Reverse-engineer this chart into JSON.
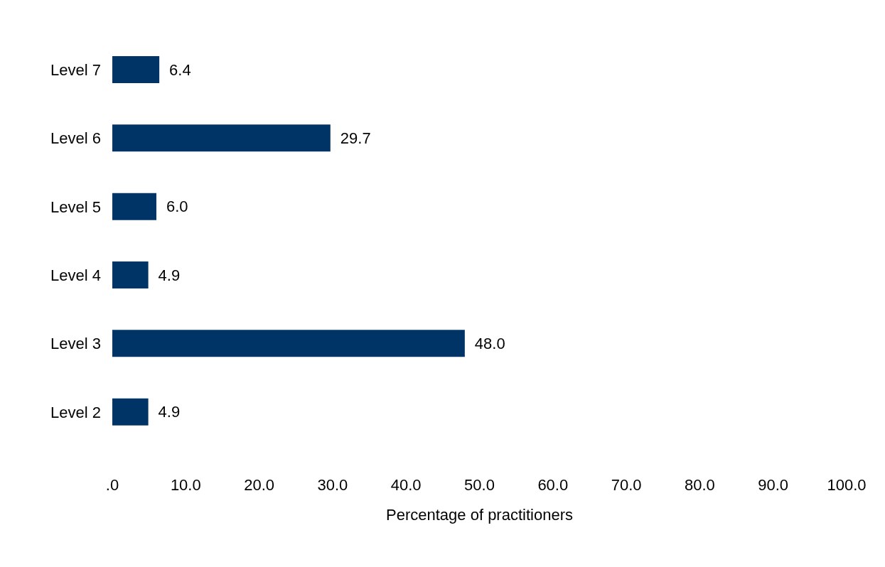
{
  "chart_data": {
    "type": "bar",
    "orientation": "horizontal",
    "xlabel": "Percentage of practitioners",
    "categories": [
      "Level 7",
      "Level 6",
      "Level 5",
      "Level 4",
      "Level 3",
      "Level 2"
    ],
    "values": [
      6.4,
      29.7,
      6.0,
      4.9,
      48.0,
      4.9
    ],
    "value_labels": [
      "6.4",
      "29.7",
      "6.0",
      "4.9",
      "48.0",
      "4.9"
    ],
    "color": "#003366",
    "xlim": [
      0,
      100
    ],
    "xticks": [
      {
        "value": 0,
        "label": ".0"
      },
      {
        "value": 10,
        "label": "10.0"
      },
      {
        "value": 20,
        "label": "20.0"
      },
      {
        "value": 30,
        "label": "30.0"
      },
      {
        "value": 40,
        "label": "40.0"
      },
      {
        "value": 50,
        "label": "50.0"
      },
      {
        "value": 60,
        "label": "60.0"
      },
      {
        "value": 70,
        "label": "70.0"
      },
      {
        "value": 80,
        "label": "80.0"
      },
      {
        "value": 90,
        "label": "90.0"
      },
      {
        "value": 100,
        "label": "100.0"
      }
    ],
    "legend": false
  }
}
